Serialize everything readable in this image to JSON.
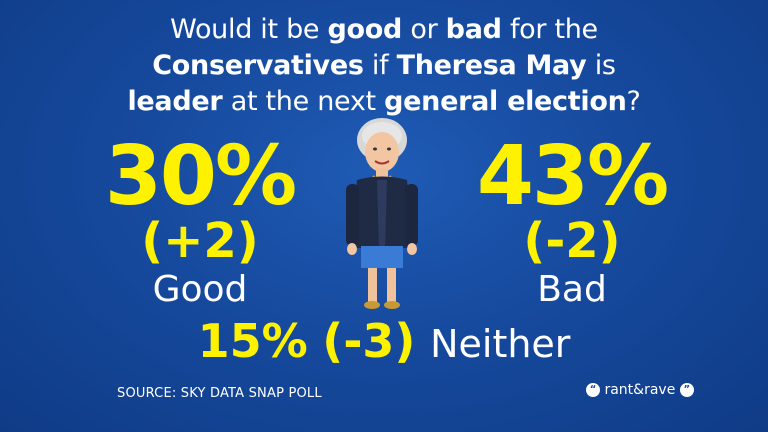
{
  "question": {
    "line1_a": "Would it be ",
    "line1_b": "good",
    "line1_c": " or ",
    "line1_d": "bad",
    "line1_e": " for the",
    "line2_a": "Conservatives",
    "line2_b": " if ",
    "line2_c": "Theresa May",
    "line2_d": " is",
    "line3_a": "leader",
    "line3_b": " at the next ",
    "line3_c": "general election",
    "line3_d": "?"
  },
  "good": {
    "percent": "30%",
    "change": "(+2)",
    "label": "Good"
  },
  "bad": {
    "percent": "43%",
    "change": "(-2)",
    "label": "Bad"
  },
  "neither": {
    "percent": "15%",
    "change": "(-3)",
    "label": "Neither"
  },
  "source": "SOURCE: SKY DATA SNAP POLL",
  "logo": {
    "text": "rant&rave"
  },
  "colors": {
    "accent": "#fff200",
    "background": "#164a9e"
  },
  "icons": {
    "figure": "theresa-may-illustration-icon",
    "logo_mark": "speech-bubble-icon"
  }
}
